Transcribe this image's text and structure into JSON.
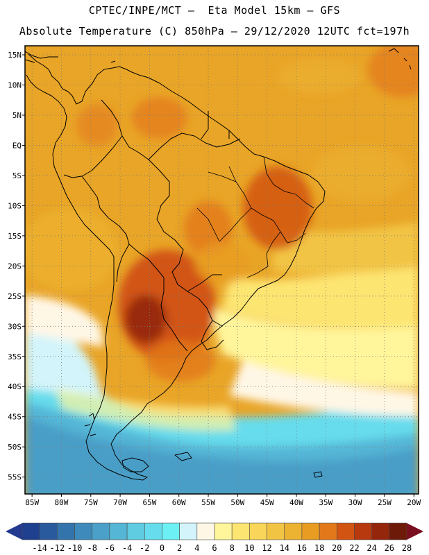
{
  "header": {
    "line1": "CPTEC/INPE/MCT –  Eta Model 15km – GFS",
    "line2": "Absolute Temperature (C) 850hPa – 29/12/2020 12UTC fct=197h"
  },
  "map": {
    "lat_labels": [
      "15N",
      "10N",
      "5N",
      "EQ",
      "5S",
      "10S",
      "15S",
      "20S",
      "25S",
      "30S",
      "35S",
      "40S",
      "45S",
      "50S",
      "55S"
    ],
    "lon_labels": [
      "85W",
      "80W",
      "75W",
      "70W",
      "65W",
      "60W",
      "55W",
      "50W",
      "45W",
      "40W",
      "35W",
      "30W",
      "25W",
      "20W"
    ],
    "lat_values": [
      15,
      10,
      5,
      0,
      -5,
      -10,
      -15,
      -20,
      -25,
      -30,
      -35,
      -40,
      -45,
      -50,
      -55
    ],
    "lon_values": [
      -85,
      -80,
      -75,
      -70,
      -65,
      -60,
      -55,
      -50,
      -45,
      -40,
      -35,
      -30,
      -25,
      -20
    ],
    "lat_range": [
      -57.8,
      16.5
    ],
    "lon_range": [
      -86.2,
      -19.2
    ],
    "grid_lines": true,
    "background_colour": "#e9a527",
    "continent": "South America"
  },
  "colorbar": {
    "labels": [
      "-14",
      "-12",
      "-10",
      "-8",
      "-6",
      "-4",
      "-2",
      "0",
      "2",
      "4",
      "6",
      "8",
      "10",
      "12",
      "14",
      "16",
      "18",
      "20",
      "22",
      "24",
      "26",
      "28"
    ],
    "colors": [
      "#1f3f8f",
      "#2a5a9e",
      "#3474ac",
      "#3e8bbb",
      "#4aa0c8",
      "#55b6d6",
      "#5fcce2",
      "#66dcec",
      "#6cf0f4",
      "#d2f4fa",
      "#fff7e6",
      "#fff59b",
      "#fde572",
      "#f9d659",
      "#f2c444",
      "#ecb231",
      "#e99c22",
      "#e2781a",
      "#d25412",
      "#b8390d",
      "#94260b",
      "#6e1a08"
    ],
    "under_colour": "#243a8f",
    "over_colour": "#7a0f1f"
  }
}
